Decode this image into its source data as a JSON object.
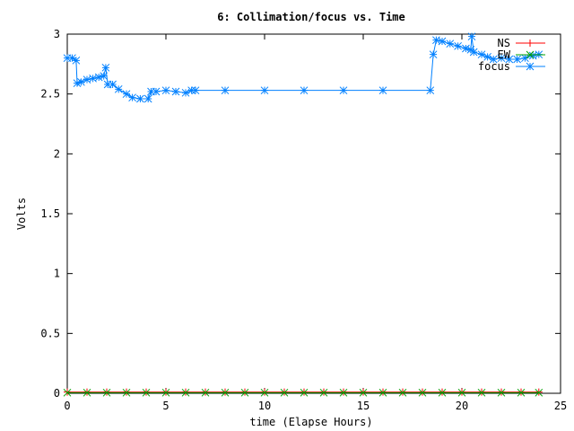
{
  "chart_data": {
    "type": "line",
    "title": "6: Collimation/focus vs. Time",
    "xlabel": "time (Elapse Hours)",
    "ylabel": "Volts",
    "xlim": [
      0,
      25
    ],
    "ylim": [
      0,
      3
    ],
    "xticks": [
      0,
      5,
      10,
      15,
      20,
      25
    ],
    "xtick_labels": [
      "0",
      "5",
      "10",
      "15",
      "20",
      "25"
    ],
    "yticks": [
      0,
      0.5,
      1,
      1.5,
      2,
      2.5,
      3
    ],
    "ytick_labels": [
      "0",
      "0.5",
      "1",
      "1.5",
      "2",
      "2.5",
      "3"
    ],
    "grid": false,
    "legend_position": "top-right",
    "series": [
      {
        "name": "NS",
        "color": "#ff0000",
        "marker": "plus",
        "x": [
          0,
          1,
          2,
          3,
          4,
          5,
          6,
          7,
          8,
          9,
          10,
          11,
          12,
          13,
          14,
          15,
          16,
          17,
          18,
          19,
          20,
          21,
          22,
          23,
          23.9
        ],
        "y": [
          0.01,
          0.01,
          0.01,
          0.01,
          0.01,
          0.01,
          0.01,
          0.01,
          0.01,
          0.01,
          0.01,
          0.01,
          0.01,
          0.01,
          0.01,
          0.01,
          0.01,
          0.01,
          0.01,
          0.01,
          0.01,
          0.01,
          0.01,
          0.01,
          0.01
        ]
      },
      {
        "name": "EW",
        "color": "#00a000",
        "marker": "x",
        "x": [
          0,
          1,
          2,
          3,
          4,
          5,
          6,
          7,
          8,
          9,
          10,
          11,
          12,
          13,
          14,
          15,
          16,
          17,
          18,
          19,
          20,
          21,
          22,
          23,
          23.9
        ],
        "y": [
          0.005,
          0.005,
          0.005,
          0.005,
          0.005,
          0.005,
          0.005,
          0.005,
          0.005,
          0.005,
          0.005,
          0.005,
          0.005,
          0.005,
          0.005,
          0.005,
          0.005,
          0.005,
          0.005,
          0.005,
          0.005,
          0.005,
          0.005,
          0.005,
          0.005
        ]
      },
      {
        "name": "focus",
        "color": "#0080ff",
        "marker": "star",
        "x": [
          0,
          0.25,
          0.45,
          0.5,
          0.7,
          1.0,
          1.3,
          1.6,
          1.85,
          1.95,
          2.05,
          2.3,
          2.6,
          3.0,
          3.3,
          3.7,
          4.1,
          4.25,
          4.5,
          5.0,
          5.5,
          6.0,
          6.3,
          6.5,
          8,
          10,
          12,
          14,
          16,
          18.4,
          18.55,
          18.7,
          19.0,
          19.4,
          19.8,
          20.2,
          20.45,
          20.5,
          20.6,
          21.0,
          21.3,
          21.6,
          22.0,
          22.4,
          22.8,
          23.2,
          23.6,
          23.9
        ],
        "y": [
          2.8,
          2.8,
          2.78,
          2.59,
          2.6,
          2.62,
          2.63,
          2.64,
          2.65,
          2.72,
          2.58,
          2.58,
          2.54,
          2.5,
          2.47,
          2.46,
          2.46,
          2.52,
          2.52,
          2.53,
          2.52,
          2.51,
          2.53,
          2.53,
          2.53,
          2.53,
          2.53,
          2.53,
          2.53,
          2.53,
          2.83,
          2.95,
          2.94,
          2.92,
          2.9,
          2.88,
          2.87,
          2.98,
          2.85,
          2.83,
          2.81,
          2.79,
          2.8,
          2.79,
          2.79,
          2.8,
          2.82,
          2.83
        ]
      }
    ]
  }
}
